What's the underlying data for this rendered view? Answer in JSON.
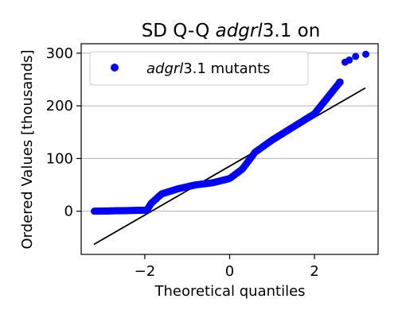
{
  "chart_data": {
    "type": "scatter",
    "title_parts": [
      {
        "text": "SD Q-Q ",
        "italic": false
      },
      {
        "text": "adgrl",
        "italic": true
      },
      {
        "text": "3.1 on",
        "italic": false
      }
    ],
    "xlabel": "Theoretical quantiles",
    "ylabel": "Ordered Values [thousands]",
    "xlim": [
      -3.5,
      3.5
    ],
    "ylim": [
      -82,
      318
    ],
    "xticks": [
      -2,
      0,
      2
    ],
    "xtick_labels": [
      "−2",
      "0",
      "2"
    ],
    "yticks": [
      0,
      100,
      200,
      300
    ],
    "ytick_labels": [
      "0",
      "100",
      "200",
      "300"
    ],
    "grid": {
      "y": true,
      "x": false
    },
    "legend": {
      "position": "top-left",
      "label_parts": [
        {
          "text": "adgrl",
          "italic": true
        },
        {
          "text": "3.1 mutants",
          "italic": false
        }
      ]
    },
    "colors": {
      "points": "#0000ff",
      "fit_line": "#000000",
      "grid": "#b0b0b0"
    },
    "fit_line": {
      "x": [
        -3.2,
        3.2
      ],
      "y": [
        -63,
        234
      ]
    },
    "series": [
      {
        "n_points": 300,
        "quantile_profile": {
          "x": [
            -3.2,
            -1.95,
            -1.85,
            -1.6,
            -1.2,
            -0.8,
            -0.4,
            0,
            0.3,
            0.6,
            1.0,
            1.5,
            2.0,
            2.3,
            2.6
          ],
          "y": [
            0,
            2,
            15,
            33,
            43,
            50,
            54,
            62,
            80,
            112,
            135,
            160,
            185,
            215,
            245
          ]
        },
        "outliers": {
          "x": [
            2.72,
            2.82,
            2.97,
            3.21
          ],
          "y": [
            283,
            287,
            294,
            298
          ]
        }
      }
    ]
  }
}
